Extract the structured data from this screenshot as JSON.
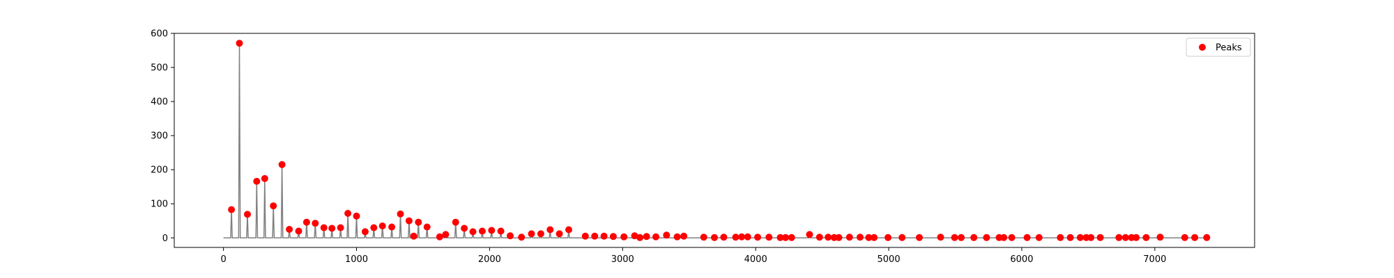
{
  "chart_data": {
    "type": "line",
    "title": "",
    "xlabel": "",
    "ylabel": "",
    "xlim": [
      -370,
      7750
    ],
    "ylim": [
      -28,
      600
    ],
    "xticks": [
      0,
      1000,
      2000,
      3000,
      4000,
      5000,
      6000,
      7000
    ],
    "yticks": [
      0,
      100,
      200,
      300,
      400,
      500,
      600
    ],
    "grid": false,
    "legend": {
      "position": "top-right",
      "entries": [
        "Peaks"
      ]
    },
    "colors": {
      "signal": "#808080",
      "peaks": "#ff0000"
    },
    "series": [
      {
        "kind": "scatter",
        "name": "Peaks",
        "color": "#ff0000",
        "x": [
          60,
          120,
          180,
          250,
          310,
          375,
          440,
          495,
          565,
          625,
          690,
          755,
          815,
          880,
          935,
          1000,
          1065,
          1130,
          1195,
          1265,
          1330,
          1395,
          1430,
          1465,
          1530,
          1625,
          1670,
          1745,
          1810,
          1875,
          1945,
          2015,
          2085,
          2155,
          2240,
          2315,
          2385,
          2455,
          2525,
          2595,
          2720,
          2790,
          2860,
          2930,
          3010,
          3090,
          3130,
          3180,
          3250,
          3330,
          3410,
          3460,
          3610,
          3690,
          3760,
          3850,
          3895,
          3940,
          4015,
          4100,
          4185,
          4225,
          4270,
          4405,
          4480,
          4545,
          4590,
          4625,
          4705,
          4785,
          4850,
          4890,
          4995,
          5100,
          5230,
          5390,
          5495,
          5545,
          5640,
          5735,
          5830,
          5865,
          5925,
          6040,
          6130,
          6290,
          6365,
          6440,
          6485,
          6520,
          6590,
          6730,
          6780,
          6825,
          6860,
          6935,
          7040,
          7225,
          7300,
          7390
        ],
        "y": [
          83,
          571,
          69,
          166,
          174,
          94,
          215,
          25,
          20,
          46,
          43,
          30,
          28,
          30,
          72,
          64,
          18,
          30,
          35,
          32,
          70,
          50,
          5,
          46,
          32,
          3,
          10,
          46,
          28,
          18,
          20,
          22,
          20,
          6,
          2,
          12,
          12,
          24,
          12,
          24,
          5,
          5,
          5,
          4,
          3,
          6,
          1,
          4,
          3,
          8,
          3,
          5,
          2,
          1,
          2,
          2,
          3,
          3,
          2,
          2,
          1,
          1,
          1,
          10,
          2,
          2,
          1,
          1,
          2,
          2,
          1,
          1,
          1,
          1,
          1,
          2,
          1,
          1,
          1,
          1,
          1,
          1,
          1,
          1,
          1,
          1,
          1,
          1,
          1,
          1,
          1,
          1,
          1,
          1,
          1,
          1,
          2,
          1,
          1,
          1
        ]
      },
      {
        "kind": "line",
        "name": "",
        "color": "#808080",
        "x_start": 0,
        "x_end": 7400,
        "baseline": 0
      }
    ]
  }
}
